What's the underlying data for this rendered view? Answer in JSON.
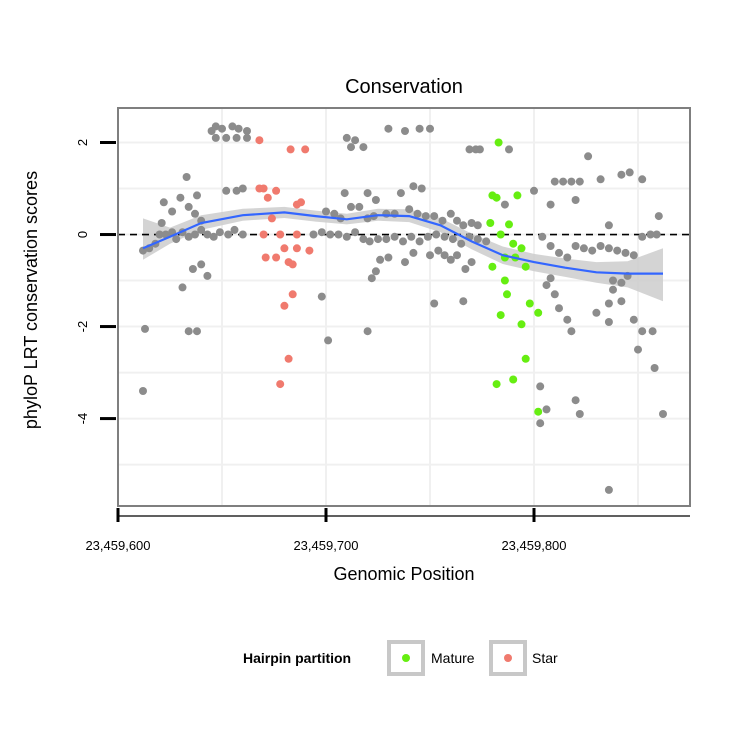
{
  "colors": {
    "other": "#8c8c8c",
    "mature": "#66ee11",
    "star": "#f07a6e",
    "smooth_line": "#3366ff",
    "ci_band": "#cccccc"
  },
  "chart_data": {
    "type": "scatter",
    "title": "Conservation",
    "xlabel": "Genomic Position",
    "ylabel": "phyloP LRT conservation scores",
    "xlim": [
      23459600,
      23459875
    ],
    "ylim": [
      -5.9,
      2.75
    ],
    "x_ticks": [
      23459600,
      23459700,
      23459800
    ],
    "x_tick_labels": [
      "23,459,600",
      "23,459,700",
      "23,459,800"
    ],
    "y_ticks": [
      2,
      0,
      -2,
      -4
    ],
    "y_tick_labels": [
      "2",
      "0",
      "-2",
      "-4"
    ],
    "grid": true,
    "reference_line": {
      "y": 0,
      "style": "dashed"
    },
    "legend": {
      "title": "Hairpin partition",
      "placement": "bottom",
      "entries": [
        {
          "name": "Mature",
          "color_key": "mature"
        },
        {
          "name": "Star",
          "color_key": "star"
        }
      ]
    },
    "series": [
      {
        "name": "Mature",
        "color_key": "mature",
        "points": [
          [
            23459783,
            2.0
          ],
          [
            23459780,
            0.85
          ],
          [
            23459782,
            0.8
          ],
          [
            23459792,
            0.85
          ],
          [
            23459779,
            0.25
          ],
          [
            23459788,
            0.22
          ],
          [
            23459784,
            0.0
          ],
          [
            23459790,
            -0.2
          ],
          [
            23459794,
            -0.3
          ],
          [
            23459786,
            -0.5
          ],
          [
            23459791,
            -0.5
          ],
          [
            23459780,
            -0.7
          ],
          [
            23459796,
            -0.7
          ],
          [
            23459786,
            -1.0
          ],
          [
            23459787,
            -1.3
          ],
          [
            23459798,
            -1.5
          ],
          [
            23459784,
            -1.75
          ],
          [
            23459802,
            -1.7
          ],
          [
            23459794,
            -1.95
          ],
          [
            23459796,
            -2.7
          ],
          [
            23459782,
            -3.25
          ],
          [
            23459790,
            -3.15
          ],
          [
            23459802,
            -3.85
          ]
        ]
      },
      {
        "name": "Star",
        "color_key": "star",
        "points": [
          [
            23459668,
            2.05
          ],
          [
            23459683,
            1.85
          ],
          [
            23459690,
            1.85
          ],
          [
            23459668,
            1.0
          ],
          [
            23459670,
            1.0
          ],
          [
            23459676,
            0.95
          ],
          [
            23459672,
            0.8
          ],
          [
            23459688,
            0.7
          ],
          [
            23459686,
            0.65
          ],
          [
            23459674,
            0.35
          ],
          [
            23459670,
            0.0
          ],
          [
            23459678,
            0.0
          ],
          [
            23459686,
            0.0
          ],
          [
            23459680,
            -0.3
          ],
          [
            23459686,
            -0.3
          ],
          [
            23459692,
            -0.35
          ],
          [
            23459671,
            -0.5
          ],
          [
            23459676,
            -0.5
          ],
          [
            23459682,
            -0.6
          ],
          [
            23459684,
            -0.65
          ],
          [
            23459680,
            -1.55
          ],
          [
            23459684,
            -1.3
          ],
          [
            23459682,
            -2.7
          ],
          [
            23459678,
            -3.25
          ]
        ]
      },
      {
        "name": "",
        "color_key": "other",
        "points": [
          [
            23459645,
            2.25
          ],
          [
            23459647,
            2.35
          ],
          [
            23459650,
            2.3
          ],
          [
            23459655,
            2.35
          ],
          [
            23459658,
            2.3
          ],
          [
            23459662,
            2.25
          ],
          [
            23459647,
            2.1
          ],
          [
            23459652,
            2.1
          ],
          [
            23459657,
            2.1
          ],
          [
            23459662,
            2.1
          ],
          [
            23459710,
            2.1
          ],
          [
            23459714,
            2.05
          ],
          [
            23459712,
            1.9
          ],
          [
            23459718,
            1.9
          ],
          [
            23459730,
            2.3
          ],
          [
            23459738,
            2.25
          ],
          [
            23459745,
            2.3
          ],
          [
            23459750,
            2.3
          ],
          [
            23459769,
            1.85
          ],
          [
            23459772,
            1.85
          ],
          [
            23459774,
            1.85
          ],
          [
            23459788,
            1.85
          ],
          [
            23459826,
            1.7
          ],
          [
            23459842,
            1.3
          ],
          [
            23459846,
            1.35
          ],
          [
            23459852,
            1.2
          ],
          [
            23459832,
            1.2
          ],
          [
            23459810,
            1.15
          ],
          [
            23459814,
            1.15
          ],
          [
            23459818,
            1.15
          ],
          [
            23459822,
            1.15
          ],
          [
            23459800,
            0.95
          ],
          [
            23459808,
            0.65
          ],
          [
            23459820,
            0.75
          ],
          [
            23459786,
            0.65
          ],
          [
            23459638,
            0.85
          ],
          [
            23459652,
            0.95
          ],
          [
            23459657,
            0.95
          ],
          [
            23459660,
            1.0
          ],
          [
            23459709,
            0.9
          ],
          [
            23459720,
            0.9
          ],
          [
            23459742,
            1.05
          ],
          [
            23459746,
            1.0
          ],
          [
            23459736,
            0.9
          ],
          [
            23459724,
            0.75
          ],
          [
            23459700,
            0.5
          ],
          [
            23459704,
            0.45
          ],
          [
            23459707,
            0.35
          ],
          [
            23459712,
            0.6
          ],
          [
            23459716,
            0.6
          ],
          [
            23459720,
            0.35
          ],
          [
            23459723,
            0.4
          ],
          [
            23459729,
            0.45
          ],
          [
            23459733,
            0.45
          ],
          [
            23459740,
            0.55
          ],
          [
            23459744,
            0.45
          ],
          [
            23459748,
            0.4
          ],
          [
            23459752,
            0.4
          ],
          [
            23459756,
            0.3
          ],
          [
            23459760,
            0.45
          ],
          [
            23459763,
            0.3
          ],
          [
            23459766,
            0.2
          ],
          [
            23459770,
            0.25
          ],
          [
            23459773,
            0.2
          ],
          [
            23459612,
            -0.35
          ],
          [
            23459615,
            -0.3
          ],
          [
            23459618,
            -0.2
          ],
          [
            23459620,
            0.0
          ],
          [
            23459623,
            0.0
          ],
          [
            23459626,
            0.05
          ],
          [
            23459628,
            -0.1
          ],
          [
            23459631,
            0.05
          ],
          [
            23459634,
            -0.05
          ],
          [
            23459637,
            0.0
          ],
          [
            23459640,
            0.1
          ],
          [
            23459643,
            0.0
          ],
          [
            23459646,
            -0.05
          ],
          [
            23459649,
            0.05
          ],
          [
            23459653,
            0.0
          ],
          [
            23459656,
            0.1
          ],
          [
            23459660,
            0.0
          ],
          [
            23459694,
            0.0
          ],
          [
            23459698,
            0.05
          ],
          [
            23459702,
            0.0
          ],
          [
            23459706,
            0.0
          ],
          [
            23459710,
            -0.05
          ],
          [
            23459714,
            0.05
          ],
          [
            23459718,
            -0.1
          ],
          [
            23459721,
            -0.15
          ],
          [
            23459725,
            -0.1
          ],
          [
            23459729,
            -0.1
          ],
          [
            23459733,
            -0.05
          ],
          [
            23459737,
            -0.15
          ],
          [
            23459741,
            -0.05
          ],
          [
            23459745,
            -0.15
          ],
          [
            23459749,
            -0.05
          ],
          [
            23459753,
            0.0
          ],
          [
            23459757,
            -0.05
          ],
          [
            23459761,
            -0.1
          ],
          [
            23459765,
            -0.2
          ],
          [
            23459769,
            -0.05
          ],
          [
            23459773,
            -0.1
          ],
          [
            23459777,
            -0.15
          ],
          [
            23459621,
            0.25
          ],
          [
            23459626,
            0.5
          ],
          [
            23459630,
            0.8
          ],
          [
            23459634,
            0.6
          ],
          [
            23459637,
            0.45
          ],
          [
            23459640,
            0.3
          ],
          [
            23459622,
            0.7
          ],
          [
            23459633,
            1.25
          ],
          [
            23459613,
            -2.05
          ],
          [
            23459631,
            -1.15
          ],
          [
            23459634,
            -2.1
          ],
          [
            23459638,
            -2.1
          ],
          [
            23459640,
            -0.65
          ],
          [
            23459643,
            -0.9
          ],
          [
            23459636,
            -0.75
          ],
          [
            23459698,
            -1.35
          ],
          [
            23459701,
            -2.3
          ],
          [
            23459720,
            -2.1
          ],
          [
            23459722,
            -0.95
          ],
          [
            23459724,
            -0.8
          ],
          [
            23459726,
            -0.55
          ],
          [
            23459730,
            -0.5
          ],
          [
            23459738,
            -0.6
          ],
          [
            23459742,
            -0.4
          ],
          [
            23459750,
            -0.45
          ],
          [
            23459754,
            -0.35
          ],
          [
            23459757,
            -0.45
          ],
          [
            23459760,
            -0.55
          ],
          [
            23459763,
            -0.45
          ],
          [
            23459767,
            -0.75
          ],
          [
            23459766,
            -1.45
          ],
          [
            23459770,
            -0.6
          ],
          [
            23459752,
            -1.5
          ],
          [
            23459612,
            -3.4
          ],
          [
            23459804,
            -0.05
          ],
          [
            23459808,
            -0.25
          ],
          [
            23459812,
            -0.4
          ],
          [
            23459816,
            -0.5
          ],
          [
            23459820,
            -0.25
          ],
          [
            23459824,
            -0.3
          ],
          [
            23459828,
            -0.35
          ],
          [
            23459832,
            -0.25
          ],
          [
            23459836,
            -0.3
          ],
          [
            23459840,
            -0.35
          ],
          [
            23459844,
            -0.4
          ],
          [
            23459848,
            -0.45
          ],
          [
            23459852,
            -0.05
          ],
          [
            23459856,
            0.0
          ],
          [
            23459859,
            0.0
          ],
          [
            23459860,
            0.4
          ],
          [
            23459845,
            -0.9
          ],
          [
            23459842,
            -1.05
          ],
          [
            23459838,
            -1.2
          ],
          [
            23459842,
            -1.45
          ],
          [
            23459808,
            -0.95
          ],
          [
            23459806,
            -1.1
          ],
          [
            23459810,
            -1.3
          ],
          [
            23459812,
            -1.6
          ],
          [
            23459816,
            -1.85
          ],
          [
            23459818,
            -2.1
          ],
          [
            23459830,
            -1.7
          ],
          [
            23459836,
            -1.9
          ],
          [
            23459848,
            -1.85
          ],
          [
            23459850,
            -2.5
          ],
          [
            23459852,
            -2.1
          ],
          [
            23459857,
            -2.1
          ],
          [
            23459858,
            -2.9
          ],
          [
            23459862,
            -3.9
          ],
          [
            23459803,
            -3.3
          ],
          [
            23459806,
            -3.8
          ],
          [
            23459820,
            -3.6
          ],
          [
            23459822,
            -3.9
          ],
          [
            23459803,
            -4.1
          ],
          [
            23459836,
            -5.55
          ],
          [
            23459836,
            -1.5
          ],
          [
            23459838,
            -1.0
          ],
          [
            23459836,
            0.2
          ]
        ]
      }
    ],
    "smooth": {
      "x": [
        23459612,
        23459625,
        23459640,
        23459660,
        23459680,
        23459695,
        23459710,
        23459725,
        23459740,
        23459755,
        23459770,
        23459785,
        23459800,
        23459815,
        23459830,
        23459845,
        23459862
      ],
      "y": [
        -0.3,
        -0.05,
        0.25,
        0.42,
        0.48,
        0.4,
        0.33,
        0.42,
        0.4,
        0.2,
        -0.15,
        -0.45,
        -0.6,
        -0.72,
        -0.82,
        -0.85,
        -0.85
      ],
      "lower": [
        -0.55,
        -0.2,
        0.1,
        0.3,
        0.36,
        0.28,
        0.22,
        0.3,
        0.27,
        0.05,
        -0.32,
        -0.64,
        -0.8,
        -0.92,
        -1.05,
        -1.15,
        -1.45
      ],
      "upper": [
        0.35,
        0.15,
        0.42,
        0.56,
        0.6,
        0.52,
        0.45,
        0.56,
        0.55,
        0.36,
        0.02,
        -0.26,
        -0.42,
        -0.52,
        -0.6,
        -0.58,
        -0.3
      ]
    }
  }
}
